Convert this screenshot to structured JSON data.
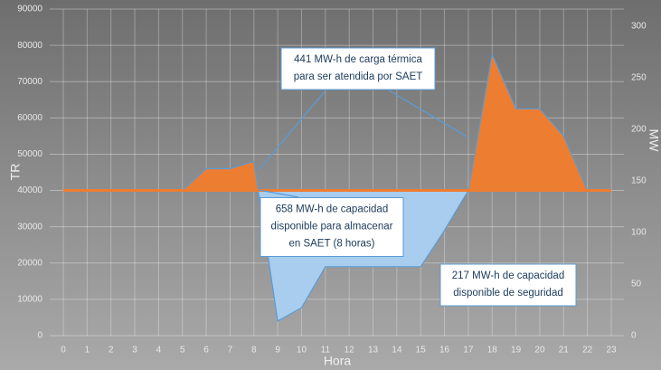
{
  "chart_data": {
    "type": "area",
    "categories": [
      "0",
      "1",
      "2",
      "3",
      "4",
      "5",
      "6",
      "7",
      "8",
      "9",
      "10",
      "11",
      "12",
      "13",
      "14",
      "15",
      "16",
      "17",
      "18",
      "19",
      "20",
      "21",
      "22",
      "23"
    ],
    "series": [
      {
        "color": "#5b9bd5",
        "values": [
          40000,
          40000,
          40000,
          40000,
          40000,
          40000,
          46000,
          46000,
          48000,
          4000,
          7700,
          19000,
          19000,
          19000,
          19000,
          19000,
          29000,
          40000,
          77500,
          62500,
          62500,
          55000,
          40000,
          40000
        ]
      },
      {
        "color": "#ed7d31",
        "values": [
          40000,
          40000,
          40000,
          40000,
          40000,
          40000,
          40000,
          40000,
          40000,
          40000,
          40000,
          40000,
          40000,
          40000,
          40000,
          40000,
          40000,
          40000,
          40000,
          40000,
          40000,
          40000,
          40000,
          40000
        ]
      }
    ],
    "above_color": "#ed7d31",
    "below_color": "#a8cdee",
    "ylabel": "TR",
    "y2label": "MW",
    "xlabel": "Hora",
    "ylim": [
      0,
      90000
    ],
    "yticks": [
      0,
      10000,
      20000,
      30000,
      40000,
      50000,
      60000,
      70000,
      80000,
      90000
    ],
    "y2lim": [
      0,
      316.5
    ],
    "y2ticks": [
      0,
      50,
      100,
      150,
      200,
      250,
      300
    ],
    "grid": true,
    "annotations": [
      {
        "lines": [
          "441 MW-h de carga térmica",
          "para ser atendida por SAET"
        ]
      },
      {
        "lines": [
          "658 MW-h de capacidad",
          "disponible para almacenar",
          "en SAET (8 horas)"
        ]
      },
      {
        "lines": [
          "217 MW-h de capacidad",
          "disponible de seguridad"
        ]
      }
    ]
  }
}
